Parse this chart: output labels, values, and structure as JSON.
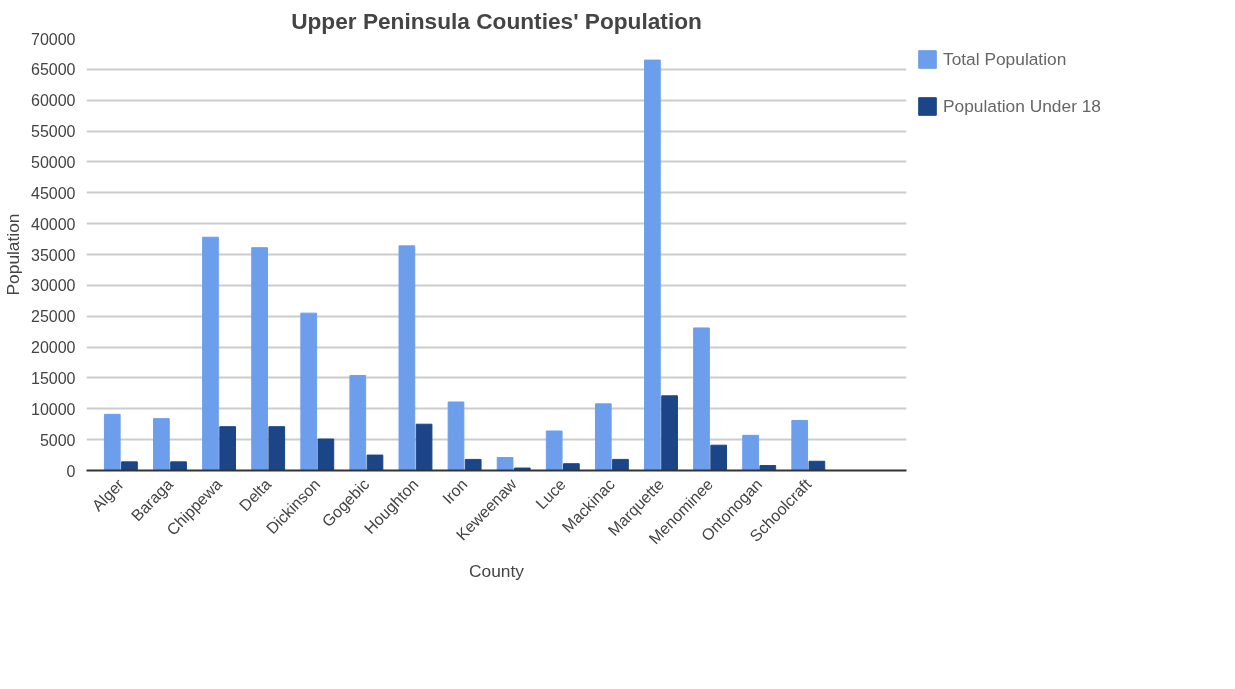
{
  "chart_data": {
    "type": "bar",
    "title": "Upper Peninsula Counties' Population",
    "xlabel": "County",
    "ylabel": "Population",
    "categories": [
      "Alger",
      "Baraga",
      "Chippewa",
      "Delta",
      "Dickinson",
      "Gogebic",
      "Houghton",
      "Iron",
      "Keweenaw",
      "Luce",
      "Mackinac",
      "Marquette",
      "Menominee",
      "Ontonogan",
      "Schoolcraft"
    ],
    "series": [
      {
        "name": "Total Population",
        "color": "#6d9eeb",
        "values": [
          9100,
          8400,
          37800,
          36100,
          25500,
          15400,
          36400,
          11100,
          2100,
          6400,
          10800,
          66500,
          23100,
          5700,
          8100
        ]
      },
      {
        "name": "Population Under 18",
        "color": "#1c4587",
        "values": [
          1400,
          1400,
          7100,
          7100,
          5100,
          2500,
          7500,
          1800,
          400,
          1100,
          1800,
          12100,
          4100,
          800,
          1500
        ]
      }
    ],
    "ylim": [
      0,
      70000
    ],
    "yticks": [
      0,
      5000,
      10000,
      15000,
      20000,
      25000,
      30000,
      35000,
      40000,
      45000,
      50000,
      55000,
      60000,
      65000,
      70000
    ],
    "grid": "y",
    "legend": "top right"
  }
}
